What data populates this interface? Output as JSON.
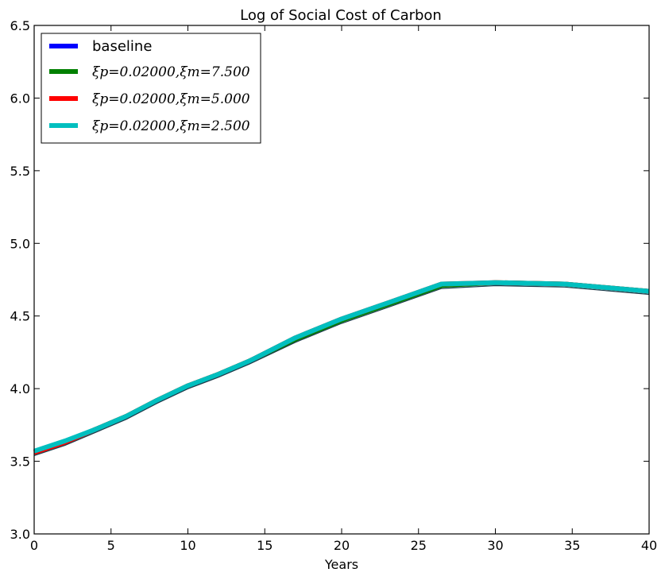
{
  "chart_data": {
    "type": "line",
    "title": "Log of Social Cost of Carbon",
    "xlabel": "Years",
    "ylabel": "",
    "xlim": [
      0,
      40
    ],
    "ylim": [
      3.0,
      6.5
    ],
    "xticks": [
      "0",
      "5",
      "10",
      "15",
      "20",
      "25",
      "30",
      "35",
      "40"
    ],
    "yticks": [
      "3.0",
      "3.5",
      "4.0",
      "4.5",
      "5.0",
      "5.5",
      "6.0",
      "6.5"
    ],
    "grid": false,
    "legend_position": "top-left",
    "x": [
      0,
      2,
      4,
      6,
      8,
      10,
      12,
      14,
      17,
      20,
      23,
      26.5,
      30,
      34.5,
      40
    ],
    "series": [
      {
        "name": "baseline",
        "color": "#0000ff",
        "values": [
          3.55,
          3.62,
          3.71,
          3.8,
          3.91,
          4.01,
          4.09,
          4.18,
          4.33,
          4.46,
          4.57,
          4.7,
          4.72,
          4.71,
          4.66
        ]
      },
      {
        "name": "ξp=0.02000,ξm=7.500",
        "color": "#008000",
        "values": [
          3.56,
          3.63,
          3.72,
          3.81,
          3.92,
          4.02,
          4.1,
          4.19,
          4.34,
          4.47,
          4.58,
          4.71,
          4.73,
          4.72,
          4.67
        ]
      },
      {
        "name": "ξp=0.02000,ξm=5.000",
        "color": "#ff0000",
        "values": [
          3.56,
          3.63,
          3.72,
          3.81,
          3.92,
          4.02,
          4.1,
          4.19,
          4.35,
          4.48,
          4.59,
          4.72,
          4.73,
          4.72,
          4.67
        ]
      },
      {
        "name": "ξp=0.02000,ξm=2.500",
        "color": "#00bfbf",
        "values": [
          3.57,
          3.64,
          3.72,
          3.81,
          3.92,
          4.02,
          4.1,
          4.19,
          4.35,
          4.48,
          4.59,
          4.72,
          4.73,
          4.72,
          4.67
        ]
      }
    ]
  }
}
